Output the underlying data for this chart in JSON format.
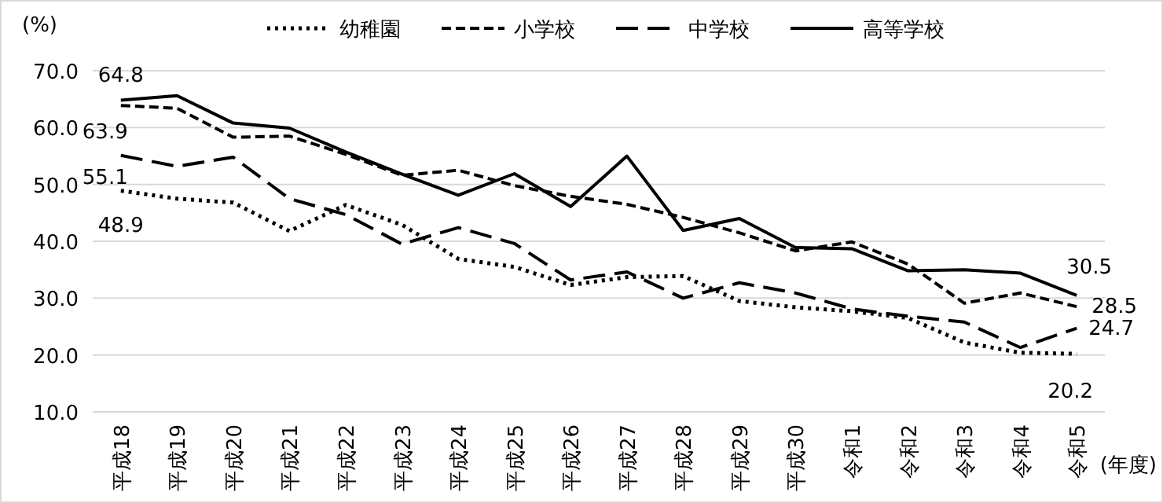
{
  "chart_data": {
    "type": "line",
    "ylabel": "(%)",
    "xlabel": "(年度)",
    "categories": [
      "平成18",
      "平成19",
      "平成20",
      "平成21",
      "平成22",
      "平成23",
      "平成24",
      "平成25",
      "平成26",
      "平成27",
      "平成28",
      "平成29",
      "平成30",
      "令和1",
      "令和2",
      "令和3",
      "令和4",
      "令和5"
    ],
    "ylim": [
      10,
      70
    ],
    "yticks": [
      {
        "value": 10,
        "label": "10.0"
      },
      {
        "value": 20,
        "label": "20.0"
      },
      {
        "value": 30,
        "label": "30.0"
      },
      {
        "value": 40,
        "label": "40.0"
      },
      {
        "value": 50,
        "label": "50.0"
      },
      {
        "value": 60,
        "label": "60.0"
      },
      {
        "value": 70,
        "label": "70.0"
      }
    ],
    "grid": "y",
    "legend": "top",
    "marker": "none",
    "series": [
      {
        "name": "幼稚園",
        "color": "#000000",
        "line_style": "dotted",
        "values": [
          48.9,
          47.5,
          46.8,
          41.8,
          46.4,
          42.9,
          36.9,
          35.5,
          32.3,
          33.7,
          33.9,
          29.5,
          28.4,
          27.7,
          26.5,
          22.2,
          20.4,
          20.2
        ],
        "value_labels": [
          "48.9",
          null,
          null,
          null,
          null,
          null,
          null,
          null,
          null,
          null,
          null,
          null,
          null,
          null,
          null,
          null,
          null,
          "20.2"
        ]
      },
      {
        "name": "小学校",
        "color": "#000000",
        "line_style": "dashed",
        "values": [
          63.9,
          63.4,
          58.3,
          58.5,
          55.3,
          51.6,
          52.5,
          49.8,
          47.9,
          46.5,
          44.2,
          41.5,
          38.3,
          39.9,
          36.0,
          29.1,
          30.9,
          28.5
        ],
        "value_labels": [
          "63.9",
          null,
          null,
          null,
          null,
          null,
          null,
          null,
          null,
          null,
          null,
          null,
          null,
          null,
          null,
          null,
          null,
          "28.5"
        ]
      },
      {
        "name": "中学校",
        "color": "#000000",
        "line_style": "long dashed",
        "values": [
          55.1,
          53.2,
          54.8,
          47.5,
          44.7,
          39.5,
          42.4,
          39.6,
          33.2,
          34.6,
          30.0,
          32.7,
          30.9,
          28.1,
          26.8,
          25.8,
          21.3,
          24.7
        ],
        "value_labels": [
          "55.1",
          null,
          null,
          null,
          null,
          null,
          null,
          null,
          null,
          null,
          null,
          null,
          null,
          null,
          null,
          null,
          null,
          "24.7"
        ]
      },
      {
        "name": "高等学校",
        "color": "#000000",
        "line_style": "solid",
        "values": [
          64.8,
          65.6,
          60.8,
          59.9,
          55.7,
          51.8,
          48.1,
          51.9,
          46.1,
          55.0,
          41.9,
          44.0,
          38.9,
          38.7,
          34.8,
          35.0,
          34.4,
          30.5
        ],
        "value_labels": [
          "64.8",
          null,
          null,
          null,
          null,
          null,
          null,
          null,
          null,
          null,
          null,
          null,
          null,
          null,
          null,
          null,
          null,
          "30.5"
        ]
      }
    ]
  }
}
